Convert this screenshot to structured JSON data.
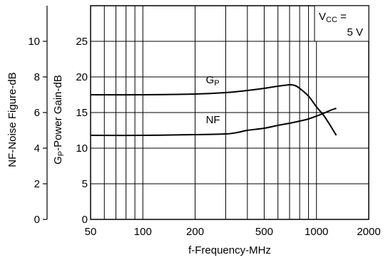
{
  "chart_data": {
    "type": "line",
    "xlabel": "f-Frequency-MHz",
    "x_scale": "log",
    "xlim": [
      50,
      2000
    ],
    "x_ticks": [
      "50",
      "100",
      "200",
      "500",
      "1000",
      "2000"
    ],
    "x_tick_values": [
      50,
      100,
      200,
      500,
      1000,
      2000
    ],
    "x_grid_values": [
      50,
      60,
      70,
      80,
      90,
      100,
      200,
      300,
      400,
      500,
      600,
      700,
      800,
      900,
      1000,
      2000
    ],
    "grid": true,
    "left_axis": {
      "label": "NF-Noise Figure-dB",
      "ylim": [
        0,
        12
      ],
      "ticks": [
        "0",
        "2",
        "4",
        "6",
        "8",
        "10"
      ],
      "tick_values": [
        0,
        2,
        4,
        6,
        8,
        10
      ]
    },
    "right_axis": {
      "label_main": "G",
      "label_sub": "P",
      "label_rest": "-Power Gain-dB",
      "ylim": [
        0,
        30
      ],
      "ticks": [
        "0",
        "5",
        "10",
        "15",
        "20",
        "25"
      ],
      "tick_values": [
        0,
        5,
        10,
        15,
        20,
        25
      ]
    },
    "annotation": {
      "line1_main": "V",
      "line1_sub": "CC",
      "line1_rest": " =",
      "line2": "5 V"
    },
    "series": [
      {
        "label_main": "G",
        "label_sub": "P",
        "label_at": [
          200,
          19.1
        ],
        "x": [
          50,
          100,
          200,
          300,
          400,
          500,
          600,
          700,
          750,
          800,
          900,
          1000,
          1100,
          1200,
          1300
        ],
        "y": [
          17.5,
          17.5,
          17.6,
          17.8,
          18.1,
          18.4,
          18.7,
          18.9,
          18.8,
          18.4,
          17.3,
          15.8,
          14.6,
          13.2,
          11.8
        ]
      },
      {
        "label_main": "NF",
        "label_sub": "",
        "label_at": [
          200,
          13.5
        ],
        "x": [
          50,
          100,
          200,
          300,
          350,
          400,
          500,
          600,
          700,
          800,
          900,
          1000,
          1100,
          1200,
          1300
        ],
        "y": [
          11.8,
          11.8,
          11.9,
          12.0,
          12.2,
          12.5,
          12.8,
          13.2,
          13.5,
          13.8,
          14.1,
          14.5,
          14.9,
          15.3,
          15.6
        ]
      }
    ]
  }
}
